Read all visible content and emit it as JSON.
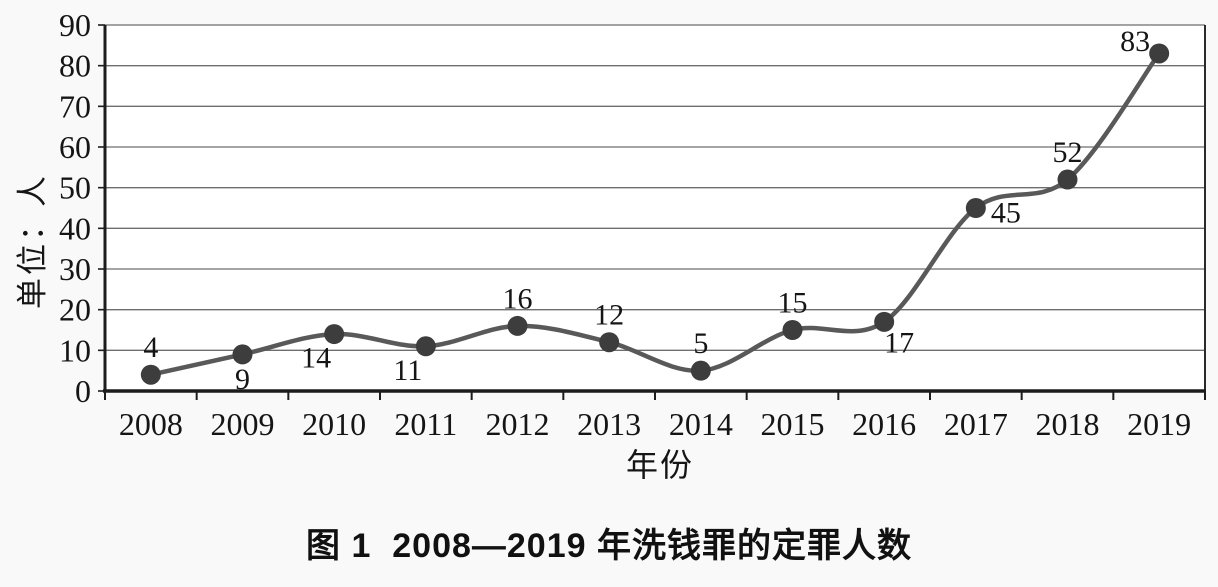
{
  "chart_data": {
    "type": "line",
    "title": "",
    "caption": "图 1  2008—2019 年洗钱罪的定罪人数",
    "xlabel": "年份",
    "ylabel": "单位：人",
    "categories": [
      "2008",
      "2009",
      "2010",
      "2011",
      "2012",
      "2013",
      "2014",
      "2015",
      "2016",
      "2017",
      "2018",
      "2019"
    ],
    "values": [
      4,
      9,
      14,
      11,
      16,
      12,
      5,
      15,
      17,
      45,
      52,
      83
    ],
    "data_labels": [
      "4",
      "9",
      "14",
      "11",
      "16",
      "12",
      "5",
      "15",
      "17",
      "45",
      "52",
      "83"
    ],
    "label_placement": [
      "above",
      "below",
      "below-left",
      "below-left",
      "above",
      "above",
      "above",
      "above",
      "below-right",
      "right",
      "above",
      "above-left"
    ],
    "yticks": [
      0,
      10,
      20,
      30,
      40,
      50,
      60,
      70,
      80,
      90
    ],
    "ylim": [
      0,
      90
    ],
    "grid": "horizontal",
    "legend": "none",
    "smooth": true,
    "colors": {
      "line": "#595959",
      "marker": "#3d3d3d",
      "grid": "#6e6e6e",
      "axis": "#1c1c1c",
      "plot_bg": "#ffffff",
      "text": "#151515"
    }
  }
}
